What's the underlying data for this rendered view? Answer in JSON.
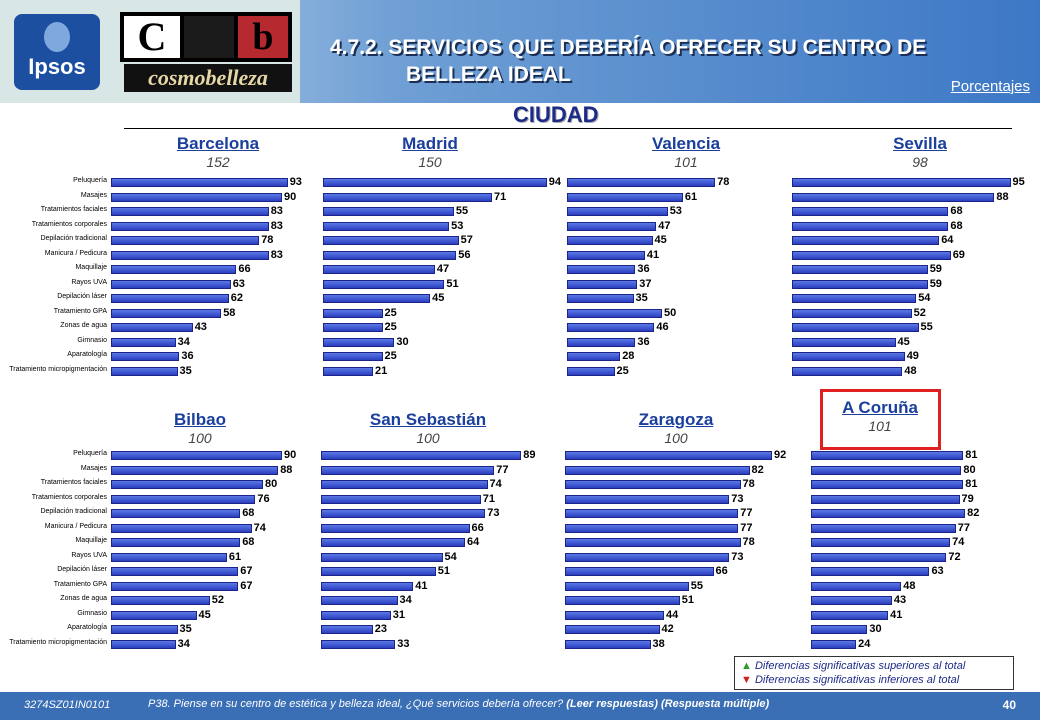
{
  "header": {
    "logo_ipsos": "Ipsos",
    "logo_cb_c": "C",
    "logo_cb_b": "b",
    "logo_cosmo": "cosmobelleza",
    "title_line1": "4.7.2. SERVICIOS QUE DEBERÍA OFRECER SU CENTRO DE",
    "title_line2": "BELLEZA IDEAL",
    "unit": "Porcentajes",
    "section": "CIUDAD"
  },
  "chart_data": {
    "type": "bar",
    "orientation": "horizontal",
    "categories": [
      "Peluquería",
      "Masajes",
      "Tratamientos faciales",
      "Tratamientos corporales",
      "Depilación tradicional",
      "Manicura / Pedicura",
      "Maquillaje",
      "Rayos UVA",
      "Depilación láser",
      "Tratamiento GPA",
      "Zonas de agua",
      "Gimnasio",
      "Aparatología",
      "Tratamiento micropigmentación"
    ],
    "panels": [
      {
        "name": "Barcelona",
        "n": "152",
        "values": [
          93,
          90,
          83,
          83,
          78,
          83,
          66,
          63,
          62,
          58,
          43,
          34,
          36,
          35
        ]
      },
      {
        "name": "Madrid",
        "n": "150",
        "values": [
          94,
          71,
          55,
          53,
          57,
          56,
          47,
          51,
          45,
          25,
          25,
          30,
          25,
          21
        ]
      },
      {
        "name": "Valencia",
        "n": "101",
        "values": [
          78,
          61,
          53,
          47,
          45,
          41,
          36,
          37,
          35,
          50,
          46,
          36,
          28,
          25
        ]
      },
      {
        "name": "Sevilla",
        "n": "98",
        "values": [
          95,
          88,
          68,
          68,
          64,
          69,
          59,
          59,
          54,
          52,
          55,
          45,
          49,
          48
        ]
      },
      {
        "name": "Bilbao",
        "n": "100",
        "values": [
          90,
          88,
          80,
          76,
          68,
          74,
          68,
          61,
          67,
          67,
          52,
          45,
          35,
          34
        ]
      },
      {
        "name": "San Sebastián",
        "n": "100",
        "values": [
          89,
          77,
          74,
          71,
          73,
          66,
          64,
          54,
          51,
          41,
          34,
          31,
          23,
          33
        ]
      },
      {
        "name": "Zaragoza",
        "n": "100",
        "values": [
          92,
          82,
          78,
          73,
          77,
          77,
          78,
          73,
          66,
          55,
          51,
          44,
          42,
          38
        ]
      },
      {
        "name": "A Coruña",
        "n": "101",
        "values": [
          81,
          80,
          81,
          79,
          82,
          77,
          74,
          72,
          63,
          48,
          43,
          41,
          30,
          24
        ]
      }
    ],
    "xlim": [
      0,
      100
    ],
    "bar_color": "#3550d6",
    "highlight_color": "#e02020"
  },
  "legend": {
    "up_text": "Diferencias significativas superiores al total",
    "down_text": "Diferencias significativas inferiores al total",
    "up_color": "#2a9c2a",
    "down_color": "#d02020"
  },
  "footer": {
    "code": "3274SZ01IN0101",
    "question": "P38.  Piense en su centro de estética y belleza ideal, ¿Qué servicios debería ofrecer?",
    "question_bold": "(Leer respuestas)  (Respuesta múltiple)",
    "page": "40"
  }
}
